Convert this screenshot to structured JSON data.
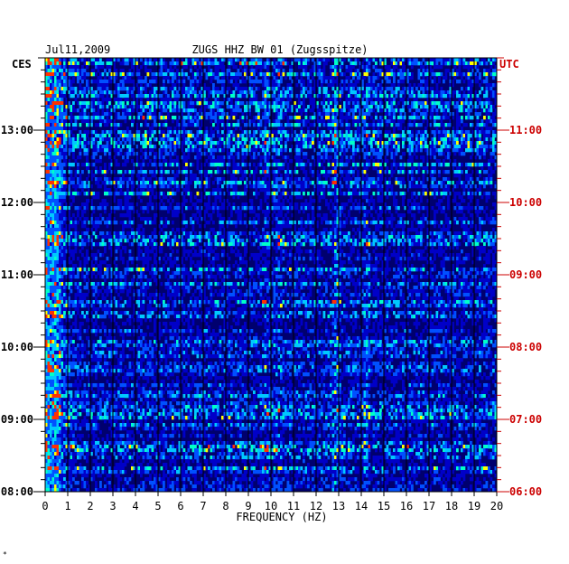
{
  "chart_data": {
    "type": "heatmap",
    "date": "Jul11,2009",
    "title": "ZUGS HHZ BW 01 (Zugsspitze)",
    "xlabel": "FREQUENCY (HZ)",
    "xlim": [
      0,
      20
    ],
    "x_ticks": [
      0,
      1,
      2,
      3,
      4,
      5,
      6,
      7,
      8,
      9,
      10,
      11,
      12,
      13,
      14,
      15,
      16,
      17,
      18,
      19,
      20
    ],
    "left_axis": {
      "label": "CES",
      "tick_labels": [
        "08:00",
        "09:00",
        "10:00",
        "11:00",
        "12:00",
        "13:00"
      ],
      "color": "#000000"
    },
    "right_axis": {
      "label": "UTC",
      "tick_labels": [
        "06:00",
        "07:00",
        "08:00",
        "09:00",
        "10:00",
        "11:00"
      ],
      "color": "#cc0000"
    },
    "time_range_hours": [
      8.0,
      14.0
    ],
    "minor_tick_minutes": 10,
    "grid": "vertical-lines-every-1-hz",
    "colors": {
      "background": "#00006e",
      "low": "#0000c8",
      "mid": "#0050ff",
      "high": "#00c8ff",
      "very_high": "#ffff00",
      "peak": "#ff3000"
    },
    "persistent_bands_hz": [
      0.5,
      9.8,
      10.3,
      12.9,
      14.2
    ],
    "dominant_line_hz": 12.9
  },
  "footer_mark": "*"
}
